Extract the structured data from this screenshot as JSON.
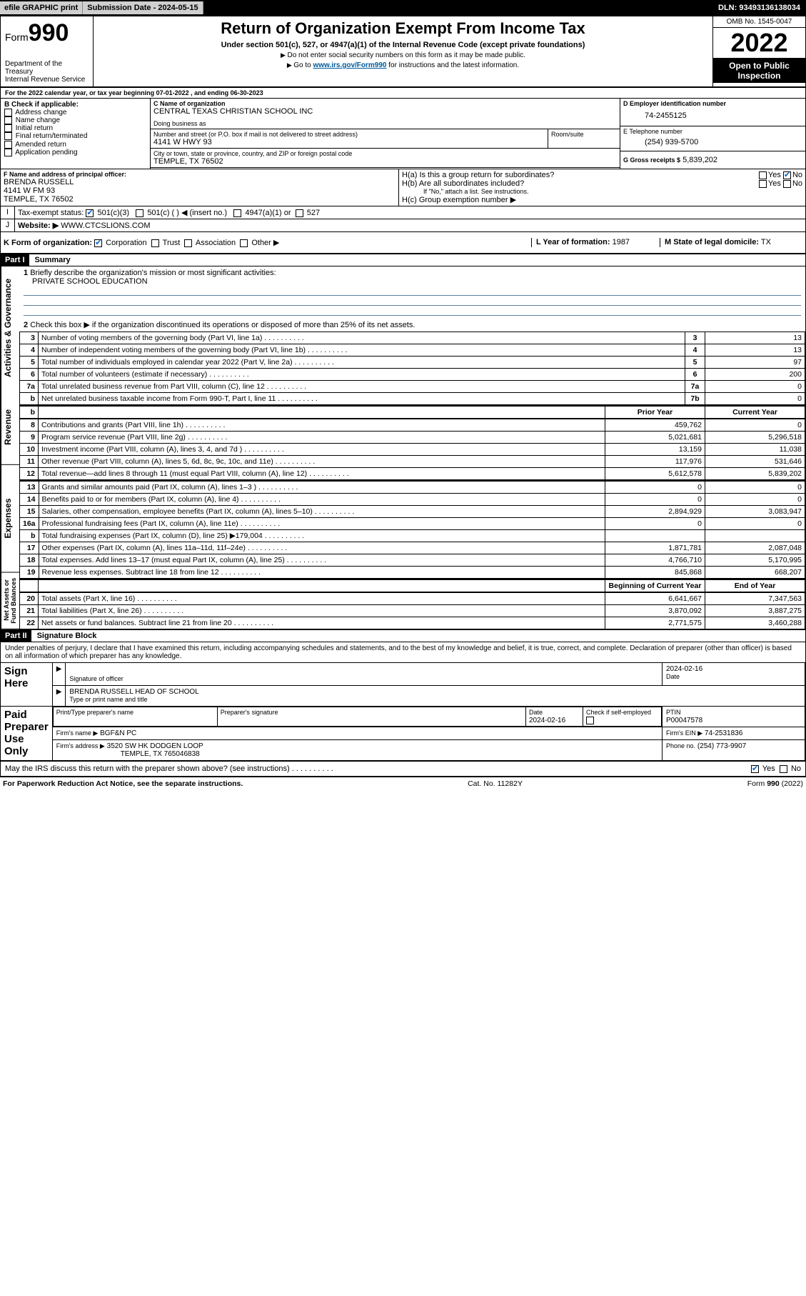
{
  "topbar": {
    "efile_lbl": "efile GRAPHIC print",
    "sub_lbl": "Submission Date - ",
    "sub_date": "2024-05-15",
    "dln_lbl": "DLN: ",
    "dln": "93493136138034"
  },
  "header": {
    "form_prefix": "Form",
    "form_no": "990",
    "dept": "Department of the Treasury\nInternal Revenue Service",
    "title": "Return of Organization Exempt From Income Tax",
    "subtitle": "Under section 501(c), 527, or 4947(a)(1) of the Internal Revenue Code (except private foundations)",
    "note1": "Do not enter social security numbers on this form as it may be made public.",
    "note2_pre": "Go to ",
    "note2_link": "www.irs.gov/Form990",
    "note2_post": " for instructions and the latest information.",
    "omb": "OMB No. 1545-0047",
    "year": "2022",
    "inspect": "Open to Public Inspection"
  },
  "lineA": "For the 2022 calendar year, or tax year beginning 07-01-2022    , and ending 06-30-2023",
  "boxB": {
    "title": "B Check if applicable:",
    "items": [
      "Address change",
      "Name change",
      "Initial return",
      "Final return/terminated",
      "Amended return",
      "Application pending"
    ]
  },
  "boxC": {
    "name_lbl": "C Name of organization",
    "name": "CENTRAL TEXAS CHRISTIAN SCHOOL INC",
    "dba_lbl": "Doing business as",
    "street_lbl": "Number and street (or P.O. box if mail is not delivered to street address)",
    "street": "4141 W HWY 93",
    "room_lbl": "Room/suite",
    "city_lbl": "City or town, state or province, country, and ZIP or foreign postal code",
    "city": "TEMPLE, TX  76502"
  },
  "boxD": {
    "lbl": "D Employer identification number",
    "val": "74-2455125"
  },
  "boxE": {
    "lbl": "E Telephone number",
    "val": "(254) 939-5700"
  },
  "boxG": {
    "lbl": "G Gross receipts $",
    "val": "5,839,202"
  },
  "boxF": {
    "lbl": "F  Name and address of principal officer:",
    "name": "BRENDA RUSSELL",
    "addr1": "4141 W FM 93",
    "addr2": "TEMPLE, TX  76502"
  },
  "boxH": {
    "a": "H(a)  Is this a group return for subordinates?",
    "b": "H(b)  Are all subordinates included?",
    "b_note": "If \"No,\" attach a list. See instructions.",
    "c": "H(c)  Group exemption number ▶",
    "yes": "Yes",
    "no": "No"
  },
  "lineI": {
    "lbl": "Tax-exempt status:",
    "opts": [
      "501(c)(3)",
      "501(c) (  ) ◀ (insert no.)",
      "4947(a)(1) or",
      "527"
    ]
  },
  "lineJ": {
    "lbl": "Website: ▶",
    "val": "WWW.CTCSLIONS.COM"
  },
  "lineK": {
    "lbl": "K Form of organization:",
    "opts": [
      "Corporation",
      "Trust",
      "Association",
      "Other ▶"
    ]
  },
  "lineL": {
    "lbl": "L Year of formation:",
    "val": "1987"
  },
  "lineM": {
    "lbl": "M State of legal domicile:",
    "val": "TX"
  },
  "part1": {
    "hdr": "Part I",
    "title": "Summary",
    "q1": "Briefly describe the organization's mission or most significant activities:",
    "q1_ans": "PRIVATE SCHOOL EDUCATION",
    "q2": "Check this box ▶        if the organization discontinued its operations or disposed of more than 25% of its net assets.",
    "sections": {
      "gov": "Activities & Governance",
      "rev": "Revenue",
      "exp": "Expenses",
      "net": "Net Assets or Fund Balances"
    },
    "col_prior": "Prior Year",
    "col_curr": "Current Year",
    "col_begin": "Beginning of Current Year",
    "col_end": "End of Year",
    "rows_gov": [
      {
        "n": "3",
        "t": "Number of voting members of the governing body (Part VI, line 1a)",
        "box": "3",
        "v": "13"
      },
      {
        "n": "4",
        "t": "Number of independent voting members of the governing body (Part VI, line 1b)",
        "box": "4",
        "v": "13"
      },
      {
        "n": "5",
        "t": "Total number of individuals employed in calendar year 2022 (Part V, line 2a)",
        "box": "5",
        "v": "97"
      },
      {
        "n": "6",
        "t": "Total number of volunteers (estimate if necessary)",
        "box": "6",
        "v": "200"
      },
      {
        "n": "7a",
        "t": "Total unrelated business revenue from Part VIII, column (C), line 12",
        "box": "7a",
        "v": "0"
      },
      {
        "n": "b",
        "t": "Net unrelated business taxable income from Form 990-T, Part I, line 11",
        "box": "7b",
        "v": "0"
      }
    ],
    "rows_rev": [
      {
        "n": "8",
        "t": "Contributions and grants (Part VIII, line 1h)",
        "p": "459,762",
        "c": "0"
      },
      {
        "n": "9",
        "t": "Program service revenue (Part VIII, line 2g)",
        "p": "5,021,681",
        "c": "5,296,518"
      },
      {
        "n": "10",
        "t": "Investment income (Part VIII, column (A), lines 3, 4, and 7d )",
        "p": "13,159",
        "c": "11,038"
      },
      {
        "n": "11",
        "t": "Other revenue (Part VIII, column (A), lines 5, 6d, 8c, 9c, 10c, and 11e)",
        "p": "117,976",
        "c": "531,646"
      },
      {
        "n": "12",
        "t": "Total revenue—add lines 8 through 11 (must equal Part VIII, column (A), line 12)",
        "p": "5,612,578",
        "c": "5,839,202"
      }
    ],
    "rows_exp": [
      {
        "n": "13",
        "t": "Grants and similar amounts paid (Part IX, column (A), lines 1–3 )",
        "p": "0",
        "c": "0"
      },
      {
        "n": "14",
        "t": "Benefits paid to or for members (Part IX, column (A), line 4)",
        "p": "0",
        "c": "0"
      },
      {
        "n": "15",
        "t": "Salaries, other compensation, employee benefits (Part IX, column (A), lines 5–10)",
        "p": "2,894,929",
        "c": "3,083,947"
      },
      {
        "n": "16a",
        "t": "Professional fundraising fees (Part IX, column (A), line 11e)",
        "p": "0",
        "c": "0"
      },
      {
        "n": "b",
        "t": "Total fundraising expenses (Part IX, column (D), line 25) ▶179,004",
        "p": "",
        "c": ""
      },
      {
        "n": "17",
        "t": "Other expenses (Part IX, column (A), lines 11a–11d, 11f–24e)",
        "p": "1,871,781",
        "c": "2,087,048"
      },
      {
        "n": "18",
        "t": "Total expenses. Add lines 13–17 (must equal Part IX, column (A), line 25)",
        "p": "4,766,710",
        "c": "5,170,995"
      },
      {
        "n": "19",
        "t": "Revenue less expenses. Subtract line 18 from line 12",
        "p": "845,868",
        "c": "668,207"
      }
    ],
    "rows_net": [
      {
        "n": "20",
        "t": "Total assets (Part X, line 16)",
        "p": "6,641,667",
        "c": "7,347,563"
      },
      {
        "n": "21",
        "t": "Total liabilities (Part X, line 26)",
        "p": "3,870,092",
        "c": "3,887,275"
      },
      {
        "n": "22",
        "t": "Net assets or fund balances. Subtract line 21 from line 20",
        "p": "2,771,575",
        "c": "3,460,288"
      }
    ]
  },
  "part2": {
    "hdr": "Part II",
    "title": "Signature Block",
    "decl": "Under penalties of perjury, I declare that I have examined this return, including accompanying schedules and statements, and to the best of my knowledge and belief, it is true, correct, and complete. Declaration of preparer (other than officer) is based on all information of which preparer has any knowledge.",
    "sign_here": "Sign Here",
    "sig_officer": "Signature of officer",
    "sig_date": "2024-02-16",
    "date_lbl": "Date",
    "sig_name": "BRENDA RUSSELL HEAD OF SCHOOL",
    "sig_name_lbl": "Type or print name and title",
    "paid": "Paid Preparer Use Only",
    "prep_name_lbl": "Print/Type preparer's name",
    "prep_sig_lbl": "Preparer's signature",
    "prep_date_lbl": "Date",
    "prep_date": "2024-02-16",
    "self_emp": "Check        if self-employed",
    "ptin_lbl": "PTIN",
    "ptin": "P00047578",
    "firm_name_lbl": "Firm's name    ▶",
    "firm_name": "BGF&N PC",
    "firm_ein_lbl": "Firm's EIN ▶",
    "firm_ein": "74-2531836",
    "firm_addr_lbl": "Firm's address ▶",
    "firm_addr": "3520 SW HK DODGEN LOOP",
    "firm_city": "TEMPLE, TX  765046838",
    "phone_lbl": "Phone no.",
    "phone": "(254) 773-9907",
    "may_irs": "May the IRS discuss this return with the preparer shown above? (see instructions)"
  },
  "footer": {
    "left": "For Paperwork Reduction Act Notice, see the separate instructions.",
    "mid": "Cat. No. 11282Y",
    "right": "Form 990 (2022)"
  }
}
